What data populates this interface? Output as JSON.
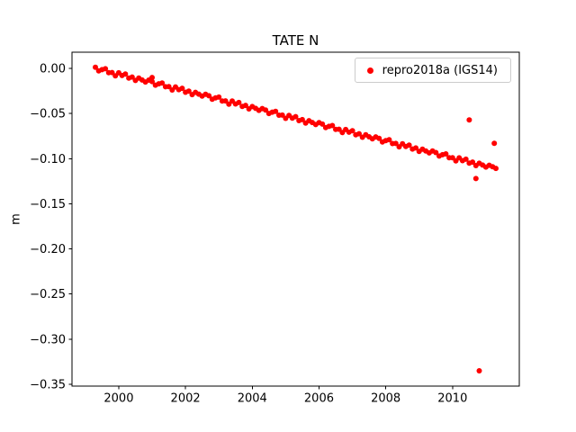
{
  "chart_data": {
    "type": "scatter",
    "title": "TATE N",
    "xlabel": "",
    "ylabel": "m",
    "legend": [
      "repro2018a (IGS14)"
    ],
    "legend_position": "upper right",
    "grid": false,
    "xlim": [
      1998.6,
      2012.0
    ],
    "ylim": [
      -0.352,
      0.018
    ],
    "xticks": [
      2000,
      2002,
      2004,
      2006,
      2008,
      2010
    ],
    "xtick_labels": [
      "2000",
      "2002",
      "2004",
      "2006",
      "2008",
      "2010"
    ],
    "yticks": [
      0.0,
      -0.05,
      -0.1,
      -0.15,
      -0.2,
      -0.25,
      -0.3,
      -0.35
    ],
    "ytick_labels": [
      "0.00",
      "−0.05",
      "−0.10",
      "−0.15",
      "−0.20",
      "−0.25",
      "−0.30",
      "−0.35"
    ],
    "series": [
      {
        "name": "repro2018a (IGS14)",
        "color": "#ff0000",
        "points": [
          [
            1999.3,
            0.0012
          ],
          [
            1999.4,
            -0.0027
          ],
          [
            1999.5,
            -0.0013
          ],
          [
            1999.6,
            -0.0004
          ],
          [
            1999.7,
            -0.0046
          ],
          [
            1999.8,
            -0.0045
          ],
          [
            1999.9,
            -0.0082
          ],
          [
            2000.0,
            -0.0048
          ],
          [
            2000.1,
            -0.0078
          ],
          [
            2000.2,
            -0.0062
          ],
          [
            2000.3,
            -0.0107
          ],
          [
            2000.4,
            -0.0095
          ],
          [
            2000.5,
            -0.0133
          ],
          [
            2000.6,
            -0.0107
          ],
          [
            2000.7,
            -0.0128
          ],
          [
            2000.8,
            -0.015
          ],
          [
            2000.9,
            -0.0129
          ],
          [
            2001.0,
            -0.0145
          ],
          [
            2001.1,
            -0.0185
          ],
          [
            2001.2,
            -0.017
          ],
          [
            2001.3,
            -0.0161
          ],
          [
            2001.4,
            -0.0203
          ],
          [
            2001.5,
            -0.0202
          ],
          [
            2001.6,
            -0.0239
          ],
          [
            2001.7,
            -0.0205
          ],
          [
            2001.8,
            -0.0235
          ],
          [
            2001.9,
            -0.022
          ],
          [
            2002.0,
            -0.0264
          ],
          [
            2002.1,
            -0.0252
          ],
          [
            2002.2,
            -0.029
          ],
          [
            2002.3,
            -0.0265
          ],
          [
            2002.4,
            -0.0285
          ],
          [
            2002.5,
            -0.0307
          ],
          [
            2002.6,
            -0.0286
          ],
          [
            2002.7,
            -0.0303
          ],
          [
            2002.8,
            -0.0342
          ],
          [
            2002.9,
            -0.0327
          ],
          [
            2003.0,
            -0.0318
          ],
          [
            2003.1,
            -0.0361
          ],
          [
            2003.2,
            -0.036
          ],
          [
            2003.3,
            -0.0396
          ],
          [
            2003.4,
            -0.0362
          ],
          [
            2003.5,
            -0.0393
          ],
          [
            2003.6,
            -0.0377
          ],
          [
            2003.7,
            -0.0421
          ],
          [
            2003.8,
            -0.0409
          ],
          [
            2003.9,
            -0.0448
          ],
          [
            2004.0,
            -0.0422
          ],
          [
            2004.1,
            -0.0442
          ],
          [
            2004.2,
            -0.0464
          ],
          [
            2004.3,
            -0.0444
          ],
          [
            2004.4,
            -0.046
          ],
          [
            2004.5,
            -0.0499
          ],
          [
            2004.6,
            -0.0484
          ],
          [
            2004.7,
            -0.0476
          ],
          [
            2004.8,
            -0.0518
          ],
          [
            2004.9,
            -0.0517
          ],
          [
            2005.0,
            -0.0553
          ],
          [
            2005.1,
            -0.052
          ],
          [
            2005.2,
            -0.055
          ],
          [
            2005.3,
            -0.0534
          ],
          [
            2005.4,
            -0.0578
          ],
          [
            2005.5,
            -0.0567
          ],
          [
            2005.6,
            -0.0605
          ],
          [
            2005.7,
            -0.0579
          ],
          [
            2005.8,
            -0.0599
          ],
          [
            2005.9,
            -0.0622
          ],
          [
            2006.0,
            -0.0601
          ],
          [
            2006.1,
            -0.0617
          ],
          [
            2006.2,
            -0.0656
          ],
          [
            2006.3,
            -0.0642
          ],
          [
            2006.4,
            -0.0633
          ],
          [
            2006.5,
            -0.0675
          ],
          [
            2006.6,
            -0.0674
          ],
          [
            2006.7,
            -0.0711
          ],
          [
            2006.8,
            -0.0677
          ],
          [
            2006.9,
            -0.0707
          ],
          [
            2007.0,
            -0.0691
          ],
          [
            2007.1,
            -0.0736
          ],
          [
            2007.2,
            -0.0724
          ],
          [
            2007.3,
            -0.0762
          ],
          [
            2007.4,
            -0.0736
          ],
          [
            2007.5,
            -0.0757
          ],
          [
            2007.6,
            -0.0779
          ],
          [
            2007.7,
            -0.0758
          ],
          [
            2007.8,
            -0.0774
          ],
          [
            2007.9,
            -0.0814
          ],
          [
            2008.0,
            -0.0799
          ],
          [
            2008.1,
            -0.079
          ],
          [
            2008.2,
            -0.0832
          ],
          [
            2008.3,
            -0.0831
          ],
          [
            2008.4,
            -0.0868
          ],
          [
            2008.5,
            -0.0834
          ],
          [
            2008.6,
            -0.0864
          ],
          [
            2008.7,
            -0.0849
          ],
          [
            2008.8,
            -0.0893
          ],
          [
            2008.9,
            -0.0881
          ],
          [
            2009.0,
            -0.0919
          ],
          [
            2009.1,
            -0.0894
          ],
          [
            2009.2,
            -0.0914
          ],
          [
            2009.3,
            -0.0936
          ],
          [
            2009.4,
            -0.0915
          ],
          [
            2009.5,
            -0.0932
          ],
          [
            2009.6,
            -0.0971
          ],
          [
            2009.7,
            -0.0956
          ],
          [
            2009.8,
            -0.0947
          ],
          [
            2009.9,
            -0.099
          ],
          [
            2010.0,
            -0.0989
          ],
          [
            2010.1,
            -0.1025
          ],
          [
            2010.2,
            -0.0991
          ],
          [
            2010.3,
            -0.1022
          ],
          [
            2010.4,
            -0.1006
          ],
          [
            2010.5,
            -0.105
          ],
          [
            2010.6,
            -0.1038
          ],
          [
            2010.7,
            -0.1077
          ],
          [
            2010.8,
            -0.1051
          ],
          [
            2010.9,
            -0.1071
          ],
          [
            2011.0,
            -0.1093
          ],
          [
            2011.1,
            -0.1073
          ],
          [
            2011.2,
            -0.1089
          ],
          [
            2011.3,
            -0.1108
          ]
        ],
        "outliers": [
          [
            2001.0,
            -0.01
          ],
          [
            2010.5,
            -0.057
          ],
          [
            2010.7,
            -0.122
          ],
          [
            2010.8,
            -0.335
          ],
          [
            2011.25,
            -0.083
          ]
        ]
      }
    ]
  }
}
